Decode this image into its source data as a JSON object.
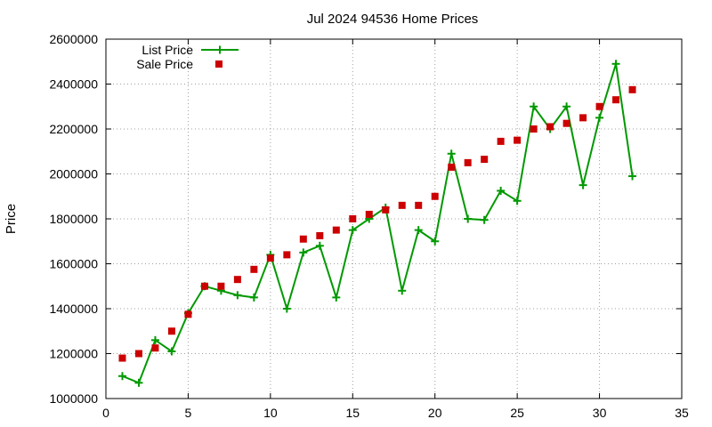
{
  "chart_data": {
    "type": "line",
    "title": "Jul 2024 94536 Home Prices",
    "xlabel": "",
    "ylabel": "Price",
    "xlim": [
      0,
      35
    ],
    "ylim": [
      1000000,
      2600000
    ],
    "x_ticks": [
      0,
      5,
      10,
      15,
      20,
      25,
      30,
      35
    ],
    "y_ticks": [
      1000000,
      1200000,
      1400000,
      1600000,
      1800000,
      2000000,
      2200000,
      2400000,
      2600000
    ],
    "grid": true,
    "legend_position": "top-left",
    "series": [
      {
        "name": "List Price",
        "style": "line-points",
        "color": "#009900",
        "x": [
          1,
          2,
          3,
          4,
          5,
          6,
          7,
          8,
          9,
          10,
          11,
          12,
          13,
          14,
          15,
          16,
          17,
          18,
          19,
          20,
          21,
          22,
          23,
          24,
          25,
          26,
          27,
          28,
          29,
          30,
          31,
          32
        ],
        "y": [
          1100000,
          1070000,
          1260000,
          1210000,
          1380000,
          1500000,
          1480000,
          1460000,
          1450000,
          1640000,
          1400000,
          1650000,
          1680000,
          1450000,
          1750000,
          1800000,
          1850000,
          1480000,
          1750000,
          1700000,
          2090000,
          1800000,
          1795000,
          1925000,
          1880000,
          2300000,
          2200000,
          2300000,
          1950000,
          2250000,
          2490000,
          1990000
        ]
      },
      {
        "name": "Sale Price",
        "style": "points",
        "color": "#cc0000",
        "x": [
          1,
          2,
          3,
          4,
          5,
          6,
          7,
          8,
          9,
          10,
          11,
          12,
          13,
          14,
          15,
          16,
          17,
          18,
          19,
          20,
          21,
          22,
          23,
          24,
          25,
          26,
          27,
          28,
          29,
          30,
          31,
          32
        ],
        "y": [
          1180000,
          1200000,
          1225000,
          1300000,
          1375000,
          1500000,
          1500000,
          1530000,
          1575000,
          1625000,
          1640000,
          1710000,
          1725000,
          1750000,
          1800000,
          1820000,
          1840000,
          1860000,
          1860000,
          1900000,
          2030000,
          2050000,
          2065000,
          2145000,
          2150000,
          2200000,
          2210000,
          2225000,
          2250000,
          2300000,
          2330000,
          2375000
        ]
      }
    ]
  }
}
